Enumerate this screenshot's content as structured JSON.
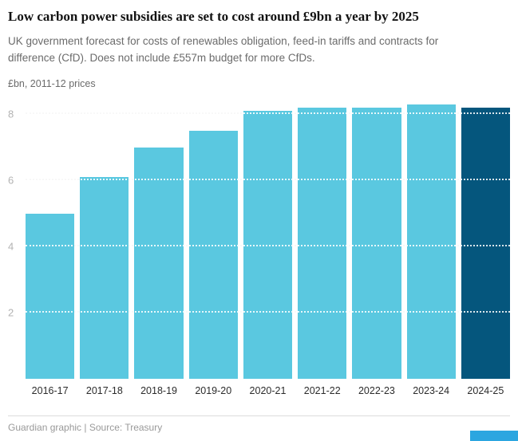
{
  "header": {
    "title": "Low carbon power subsidies are set to cost around £9bn a year by 2025",
    "subtitle": "UK government forecast for costs of renewables obligation, feed-in tariffs and contracts for difference (CfD). Does not include £557m budget for more CfDs."
  },
  "chart_data": {
    "type": "bar",
    "title": "Low carbon power subsidies are set to cost around £9bn a year by 2025",
    "subtitle": "UK government forecast for costs of renewables obligation, feed-in tariffs and contracts for difference (CfD). Does not include £557m budget for more CfDs.",
    "unit_label": "£bn, 2011-12 prices",
    "categories": [
      "2016-17",
      "2017-18",
      "2018-19",
      "2019-20",
      "2020-21",
      "2021-22",
      "2022-23",
      "2023-24",
      "2024-25"
    ],
    "values": [
      5.0,
      6.1,
      7.0,
      7.5,
      8.1,
      8.2,
      8.2,
      8.3,
      8.2
    ],
    "xlabel": "",
    "ylabel": "£bn, 2011-12 prices",
    "ylim": [
      0,
      8.45
    ],
    "yticks": [
      2,
      4,
      6,
      8
    ],
    "grid": true,
    "legend": "none",
    "bar_color": "#5ac8e0",
    "highlight_color": "#05567d",
    "highlight_index": 8
  },
  "footer": {
    "credit": "Guardian graphic | Source: Treasury"
  },
  "colors": {
    "title_text": "#121212",
    "subtitle_text": "#6b6b6b",
    "axis_tick_text": "#b3b3b3",
    "x_label_text": "#2b2b2b",
    "gridline_back": "#cdcdcd",
    "gridline_front": "#ffffff",
    "footer_text": "#999999",
    "corner_accent": "#2ca6e0"
  }
}
